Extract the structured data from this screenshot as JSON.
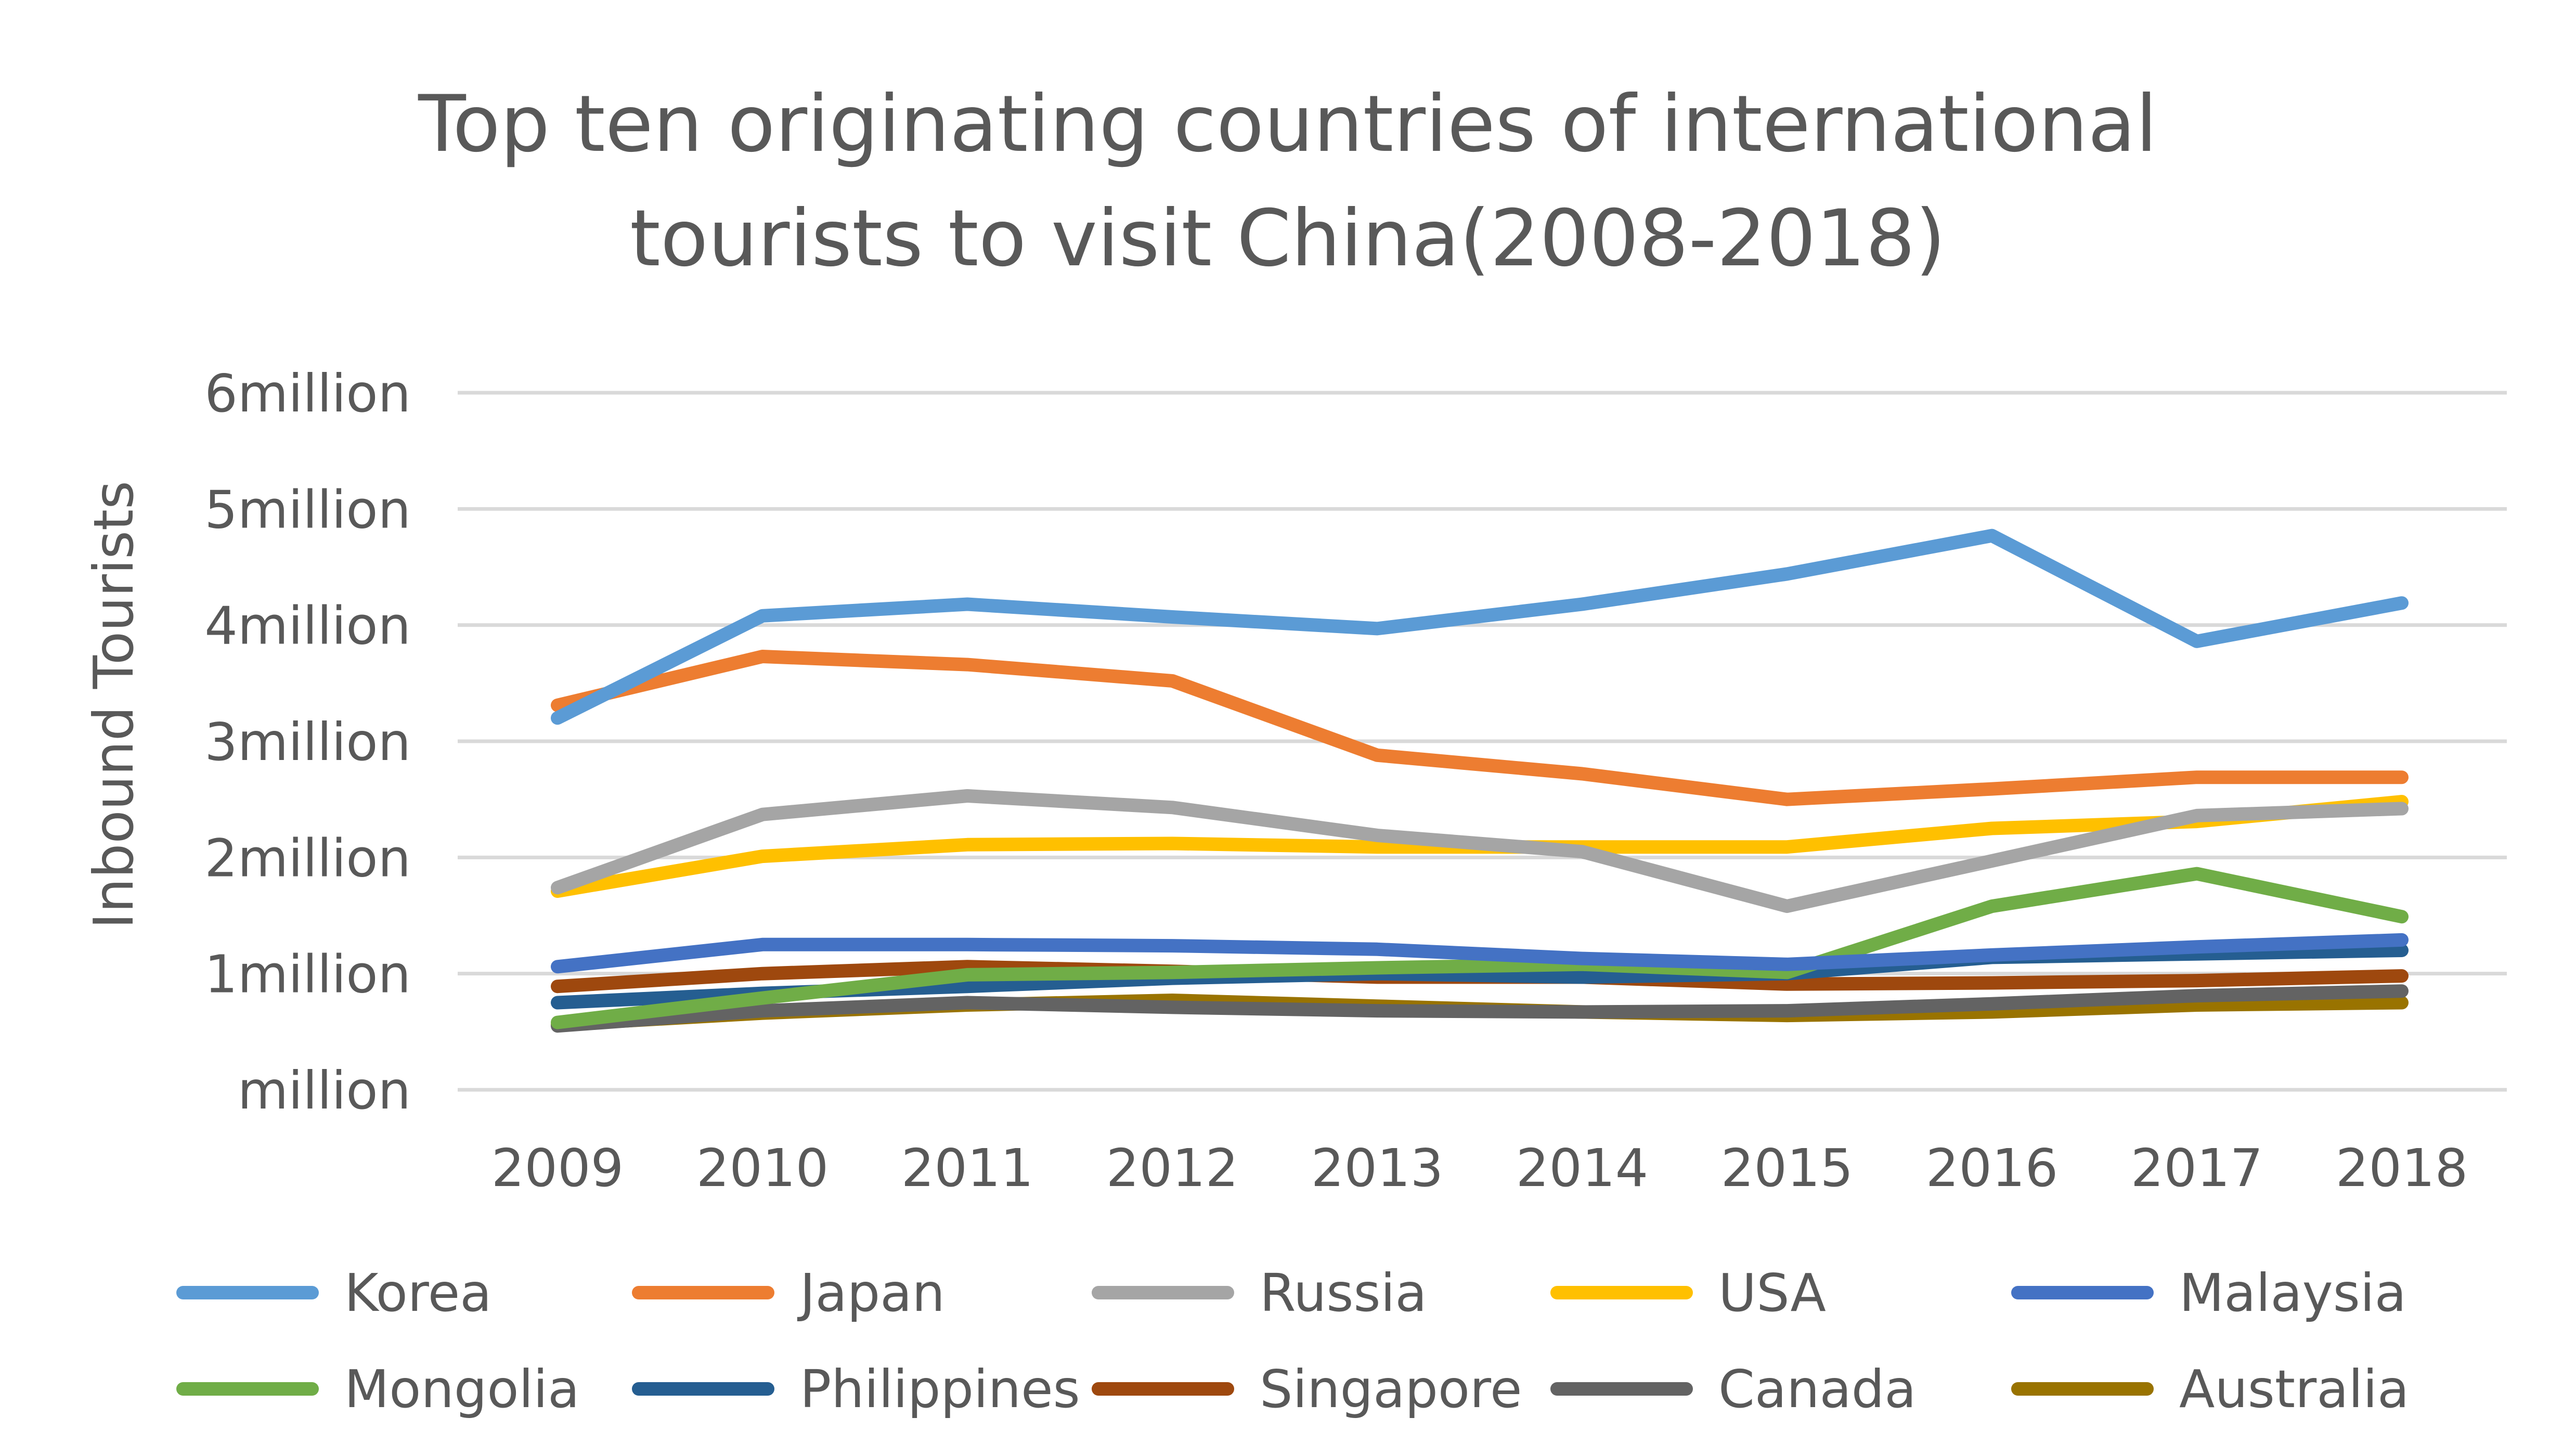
{
  "chart_data": {
    "type": "line",
    "title_lines": [
      "Top ten originating countries of international",
      "tourists to visit China(2008-2018)"
    ],
    "xlabel": "",
    "ylabel": "Inbound Tourists",
    "categories": [
      "2009",
      "2010",
      "2011",
      "2012",
      "2013",
      "2014",
      "2015",
      "2016",
      "2017",
      "2018"
    ],
    "y_tick_labels": [
      "million",
      "1million",
      "2million",
      "3million",
      "4million",
      "5million",
      "6million"
    ],
    "y_tick_values": [
      0,
      1,
      2,
      3,
      4,
      5,
      6
    ],
    "ylim": [
      0,
      6
    ],
    "units": "million",
    "grid": true,
    "legend_position": "bottom",
    "series": [
      {
        "name": "Korea",
        "color": "#5b9bd5",
        "values": [
          3.2,
          4.08,
          4.18,
          4.07,
          3.97,
          4.18,
          4.44,
          4.77,
          3.86,
          4.19
        ]
      },
      {
        "name": "Japan",
        "color": "#ed7d31",
        "values": [
          3.31,
          3.73,
          3.66,
          3.52,
          2.88,
          2.72,
          2.5,
          2.59,
          2.69,
          2.69
        ]
      },
      {
        "name": "Russia",
        "color": "#a5a5a5",
        "values": [
          1.74,
          2.37,
          2.53,
          2.43,
          2.19,
          2.05,
          1.58,
          1.97,
          2.36,
          2.42
        ]
      },
      {
        "name": "USA",
        "color": "#ffc000",
        "values": [
          1.71,
          2.01,
          2.11,
          2.12,
          2.09,
          2.09,
          2.09,
          2.25,
          2.31,
          2.48
        ]
      },
      {
        "name": "Malaysia",
        "color": "#4472c4",
        "values": [
          1.06,
          1.25,
          1.25,
          1.24,
          1.21,
          1.13,
          1.08,
          1.16,
          1.23,
          1.29
        ]
      },
      {
        "name": "Mongolia",
        "color": "#70ad47",
        "values": [
          0.58,
          0.79,
          0.99,
          1.01,
          1.05,
          1.08,
          1.01,
          1.58,
          1.86,
          1.49
        ]
      },
      {
        "name": "Philippines",
        "color": "#255e91",
        "values": [
          0.75,
          0.83,
          0.89,
          0.96,
          1.0,
          0.97,
          1.0,
          1.14,
          1.17,
          1.2
        ]
      },
      {
        "name": "Singapore",
        "color": "#9e480e",
        "values": [
          0.89,
          1.0,
          1.06,
          1.02,
          0.97,
          0.97,
          0.91,
          0.92,
          0.94,
          0.98
        ]
      },
      {
        "name": "Canada",
        "color": "#636363",
        "values": [
          0.55,
          0.68,
          0.75,
          0.71,
          0.68,
          0.67,
          0.68,
          0.74,
          0.81,
          0.85
        ]
      },
      {
        "name": "Australia",
        "color": "#997300",
        "values": [
          0.56,
          0.66,
          0.73,
          0.77,
          0.72,
          0.67,
          0.64,
          0.67,
          0.73,
          0.75
        ]
      }
    ]
  }
}
